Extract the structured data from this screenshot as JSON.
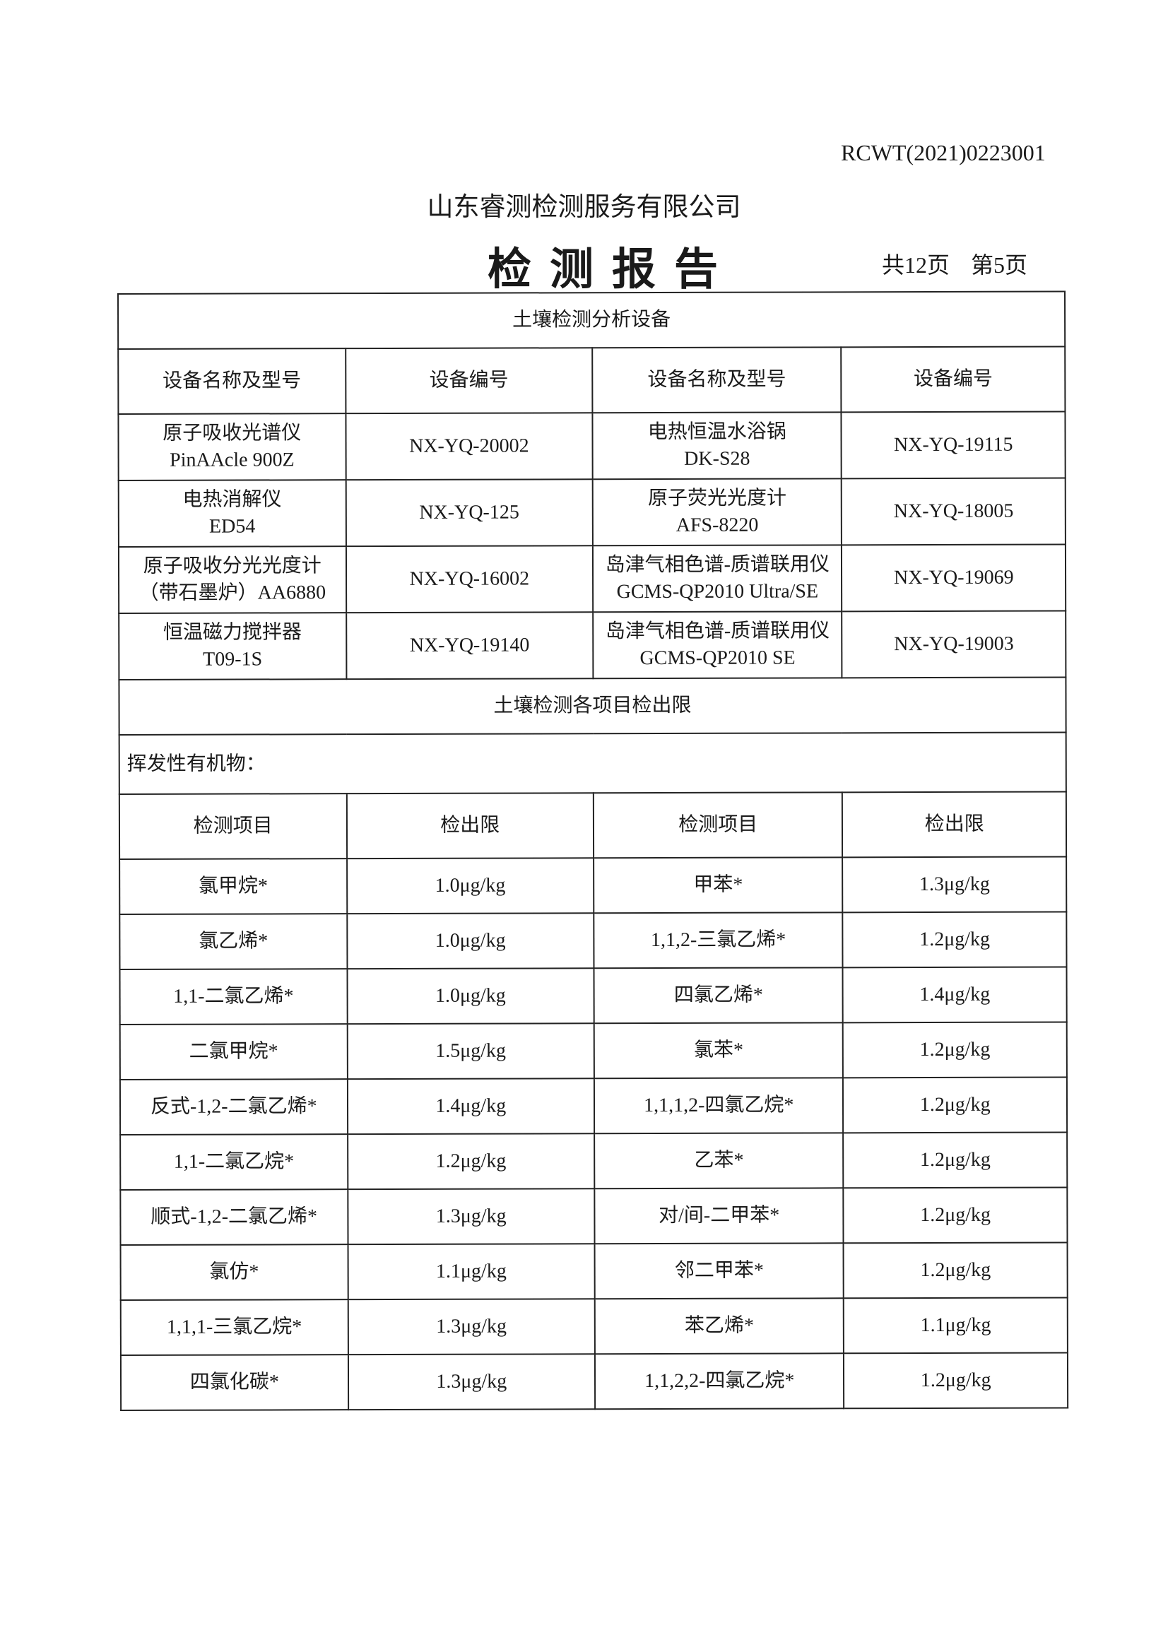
{
  "header": {
    "report_no": "RCWT(2021)0223001",
    "company": "山东睿测检测服务有限公司",
    "title": "检测报告",
    "total_pages": "共12页",
    "current_page": "第5页"
  },
  "equipment": {
    "section_title": "土壤检测分析设备",
    "columns": [
      "设备名称及型号",
      "设备编号",
      "设备名称及型号",
      "设备编号"
    ],
    "rows": [
      {
        "name1": "原子吸收光谱仪",
        "model1": "PinAAcle 900Z",
        "id1": "NX-YQ-20002",
        "name2": "电热恒温水浴锅",
        "model2": "DK-S28",
        "id2": "NX-YQ-19115"
      },
      {
        "name1": "电热消解仪",
        "model1": "ED54",
        "id1": "NX-YQ-125",
        "name2": "原子荧光光度计",
        "model2": "AFS-8220",
        "id2": "NX-YQ-18005"
      },
      {
        "name1": "原子吸收分光光度计",
        "model1": "（带石墨炉）AA6880",
        "id1": "NX-YQ-16002",
        "name2": "岛津气相色谱-质谱联用仪",
        "model2": "GCMS-QP2010 Ultra/SE",
        "id2": "NX-YQ-19069"
      },
      {
        "name1": "恒温磁力搅拌器",
        "model1": "T09-1S",
        "id1": "NX-YQ-19140",
        "name2": "岛津气相色谱-质谱联用仪",
        "model2": "GCMS-QP2010 SE",
        "id2": "NX-YQ-19003"
      }
    ]
  },
  "limits": {
    "section_title": "土壤检测各项目检出限",
    "category": "挥发性有机物：",
    "columns": [
      "检测项目",
      "检出限",
      "检测项目",
      "检出限"
    ],
    "rows": [
      {
        "item1": "氯甲烷*",
        "limit1": "1.0μg/kg",
        "item2": "甲苯*",
        "limit2": "1.3μg/kg"
      },
      {
        "item1": "氯乙烯*",
        "limit1": "1.0μg/kg",
        "item2": "1,1,2-三氯乙烯*",
        "limit2": "1.2μg/kg"
      },
      {
        "item1": "1,1-二氯乙烯*",
        "limit1": "1.0μg/kg",
        "item2": "四氯乙烯*",
        "limit2": "1.4μg/kg"
      },
      {
        "item1": "二氯甲烷*",
        "limit1": "1.5μg/kg",
        "item2": "氯苯*",
        "limit2": "1.2μg/kg"
      },
      {
        "item1": "反式-1,2-二氯乙烯*",
        "limit1": "1.4μg/kg",
        "item2": "1,1,1,2-四氯乙烷*",
        "limit2": "1.2μg/kg"
      },
      {
        "item1": "1,1-二氯乙烷*",
        "limit1": "1.2μg/kg",
        "item2": "乙苯*",
        "limit2": "1.2μg/kg"
      },
      {
        "item1": "顺式-1,2-二氯乙烯*",
        "limit1": "1.3μg/kg",
        "item2": "对/间-二甲苯*",
        "limit2": "1.2μg/kg"
      },
      {
        "item1": "氯仿*",
        "limit1": "1.1μg/kg",
        "item2": "邻二甲苯*",
        "limit2": "1.2μg/kg"
      },
      {
        "item1": "1,1,1-三氯乙烷*",
        "limit1": "1.3μg/kg",
        "item2": "苯乙烯*",
        "limit2": "1.1μg/kg"
      },
      {
        "item1": "四氯化碳*",
        "limit1": "1.3μg/kg",
        "item2": "1,1,2,2-四氯乙烷*",
        "limit2": "1.2μg/kg"
      }
    ]
  }
}
